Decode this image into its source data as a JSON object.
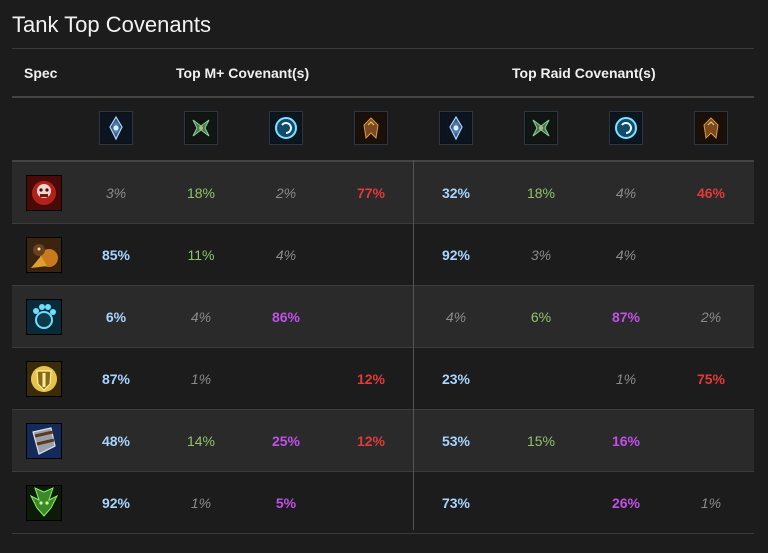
{
  "title": "Tank Top Covenants",
  "headers": {
    "spec": "Spec",
    "mplus": "Top M+ Covenant(s)",
    "raid": "Top Raid Covenant(s)"
  },
  "covenant_icons": [
    "kyrian-icon",
    "necrolord-icon",
    "night-fae-icon",
    "venthyr-icon",
    "kyrian-icon",
    "necrolord-icon",
    "night-fae-icon",
    "venthyr-icon"
  ],
  "colors": {
    "kyrian": "#a8d4ff",
    "necrolord": "#8fc46a",
    "nightfae": "#c050e8",
    "venthyr": "#e03a3a",
    "dim": "#8a8a8a"
  },
  "rows": [
    {
      "spec_icon": "blood-death-knight-icon",
      "values": [
        {
          "text": "3%",
          "style": "dim"
        },
        {
          "text": "18%",
          "style": "necrolord"
        },
        {
          "text": "2%",
          "style": "dim"
        },
        {
          "text": "77%",
          "style": "venthyr"
        },
        {
          "text": "32%",
          "style": "kyrian"
        },
        {
          "text": "18%",
          "style": "necrolord"
        },
        {
          "text": "4%",
          "style": "dim"
        },
        {
          "text": "46%",
          "style": "venthyr"
        }
      ]
    },
    {
      "spec_icon": "brewmaster-monk-icon",
      "values": [
        {
          "text": "85%",
          "style": "kyrian"
        },
        {
          "text": "11%",
          "style": "necrolord"
        },
        {
          "text": "4%",
          "style": "dim"
        },
        {
          "text": "",
          "style": "dim"
        },
        {
          "text": "92%",
          "style": "kyrian"
        },
        {
          "text": "3%",
          "style": "dim"
        },
        {
          "text": "4%",
          "style": "dim"
        },
        {
          "text": "",
          "style": "dim"
        }
      ]
    },
    {
      "spec_icon": "guardian-druid-icon",
      "values": [
        {
          "text": "6%",
          "style": "kyrian"
        },
        {
          "text": "4%",
          "style": "dim"
        },
        {
          "text": "86%",
          "style": "nightfae"
        },
        {
          "text": "",
          "style": "dim"
        },
        {
          "text": "4%",
          "style": "dim"
        },
        {
          "text": "6%",
          "style": "necrolord"
        },
        {
          "text": "87%",
          "style": "nightfae"
        },
        {
          "text": "2%",
          "style": "dim"
        }
      ]
    },
    {
      "spec_icon": "protection-paladin-icon",
      "values": [
        {
          "text": "87%",
          "style": "kyrian"
        },
        {
          "text": "1%",
          "style": "dim"
        },
        {
          "text": "",
          "style": "dim"
        },
        {
          "text": "12%",
          "style": "venthyr"
        },
        {
          "text": "23%",
          "style": "kyrian"
        },
        {
          "text": "",
          "style": "dim"
        },
        {
          "text": "1%",
          "style": "dim"
        },
        {
          "text": "75%",
          "style": "venthyr"
        }
      ]
    },
    {
      "spec_icon": "protection-warrior-icon",
      "values": [
        {
          "text": "48%",
          "style": "kyrian"
        },
        {
          "text": "14%",
          "style": "necrolord"
        },
        {
          "text": "25%",
          "style": "nightfae"
        },
        {
          "text": "12%",
          "style": "venthyr"
        },
        {
          "text": "53%",
          "style": "kyrian"
        },
        {
          "text": "15%",
          "style": "necrolord"
        },
        {
          "text": "16%",
          "style": "nightfae"
        },
        {
          "text": "",
          "style": "dim"
        }
      ]
    },
    {
      "spec_icon": "vengeance-demon-hunter-icon",
      "values": [
        {
          "text": "92%",
          "style": "kyrian"
        },
        {
          "text": "1%",
          "style": "dim"
        },
        {
          "text": "5%",
          "style": "nightfae"
        },
        {
          "text": "",
          "style": "dim"
        },
        {
          "text": "73%",
          "style": "kyrian"
        },
        {
          "text": "",
          "style": "dim"
        },
        {
          "text": "26%",
          "style": "nightfae"
        },
        {
          "text": "1%",
          "style": "dim"
        }
      ]
    }
  ]
}
